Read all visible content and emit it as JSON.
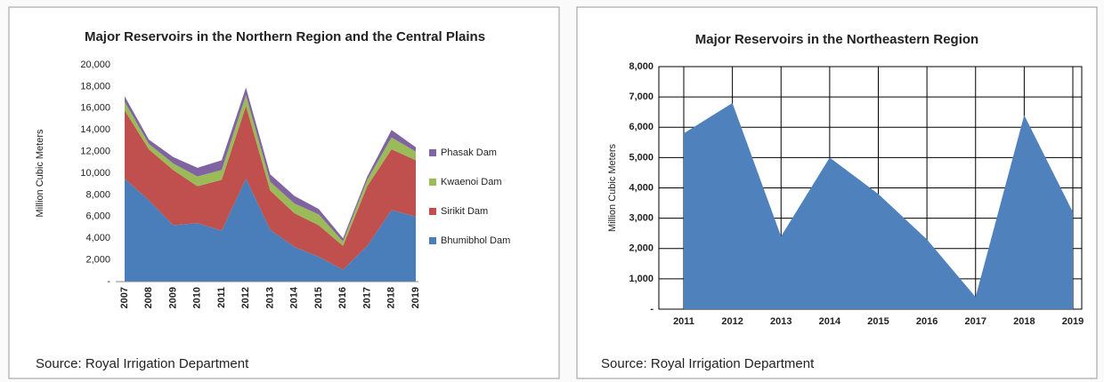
{
  "chart_data": [
    {
      "type": "area",
      "stacked": true,
      "title": "Major Reservoirs in the Northern Region and the Central Plains",
      "y_label": "Million Cubic Meters",
      "source": "Source: Royal Irrigation Department",
      "categories": [
        "2007",
        "2008",
        "2009",
        "2010",
        "2011",
        "2012",
        "2013",
        "2014",
        "2015",
        "2016",
        "2017",
        "2018",
        "2019"
      ],
      "series": [
        {
          "name": "Bhumibhol Dam",
          "color": "#4a7ebb",
          "values": [
            9500,
            7500,
            5200,
            5400,
            4700,
            9500,
            4800,
            3200,
            2300,
            1100,
            3300,
            6600,
            6000
          ]
        },
        {
          "name": "Sirikit Dam",
          "color": "#c0504d",
          "values": [
            6300,
            4700,
            5100,
            3400,
            4700,
            6700,
            3600,
            3100,
            2900,
            2200,
            5500,
            5600,
            5200
          ]
        },
        {
          "name": "Kwaenoi Dam",
          "color": "#9bbb59",
          "values": [
            800,
            500,
            600,
            900,
            900,
            1000,
            800,
            900,
            1000,
            400,
            600,
            1100,
            800
          ]
        },
        {
          "name": "Phasak Dam",
          "color": "#8064a2",
          "values": [
            500,
            400,
            600,
            800,
            900,
            700,
            700,
            700,
            500,
            300,
            300,
            700,
            400
          ]
        }
      ],
      "ylim": [
        0,
        20000
      ],
      "yticks": [
        {
          "value": 0,
          "label": "-"
        },
        {
          "value": 2000,
          "label": "2,000"
        },
        {
          "value": 4000,
          "label": "4,000"
        },
        {
          "value": 6000,
          "label": "6,000"
        },
        {
          "value": 8000,
          "label": "8,000"
        },
        {
          "value": 10000,
          "label": "10,000"
        },
        {
          "value": 12000,
          "label": "12,000"
        },
        {
          "value": 14000,
          "label": "14,000"
        },
        {
          "value": 16000,
          "label": "16,000"
        },
        {
          "value": 18000,
          "label": "18,000"
        },
        {
          "value": 20000,
          "label": "20,000"
        }
      ],
      "grid": false,
      "legend": "right"
    },
    {
      "type": "area",
      "stacked": false,
      "title": "Major Reservoirs in the Northeastern Region",
      "y_label": "Million Cubic Meters",
      "source": "Source: Royal Irrigation Department",
      "categories": [
        "2011",
        "2012",
        "2013",
        "2014",
        "2015",
        "2016",
        "2017",
        "2018",
        "2019"
      ],
      "values": [
        5800,
        6800,
        2400,
        5000,
        3800,
        2300,
        400,
        6400,
        3200
      ],
      "color": "#4f81bd",
      "ylim": [
        0,
        8000
      ],
      "yticks": [
        {
          "value": 0,
          "label": "-"
        },
        {
          "value": 1000,
          "label": "1,000"
        },
        {
          "value": 2000,
          "label": "2,000"
        },
        {
          "value": 3000,
          "label": "3,000"
        },
        {
          "value": 4000,
          "label": "4,000"
        },
        {
          "value": 5000,
          "label": "5,000"
        },
        {
          "value": 6000,
          "label": "6,000"
        },
        {
          "value": 7000,
          "label": "7,000"
        },
        {
          "value": 8000,
          "label": "8,000"
        }
      ],
      "grid": true
    }
  ]
}
